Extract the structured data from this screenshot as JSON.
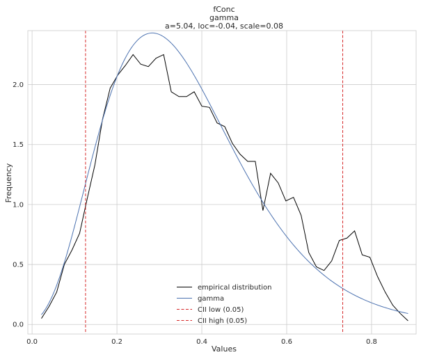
{
  "chart_data": {
    "type": "line",
    "title": [
      "fConc",
      "gamma",
      "a=5.04, loc=-0.04, scale=0.08"
    ],
    "xlabel": "Values",
    "ylabel": "Frequency",
    "xlim": [
      -0.01,
      0.905
    ],
    "ylim": [
      -0.08,
      2.45
    ],
    "xticks": [
      0.0,
      0.2,
      0.4,
      0.6,
      0.8
    ],
    "xtick_labels": [
      "0.0",
      "0.2",
      "0.4",
      "0.6",
      "0.8"
    ],
    "yticks": [
      0.0,
      0.5,
      1.0,
      1.5,
      2.0
    ],
    "ytick_labels": [
      "0.0",
      "0.5",
      "1.0",
      "1.5",
      "2.0"
    ],
    "grid": true,
    "legend_position": "lower-center",
    "series": [
      {
        "name": "empirical distribution",
        "kind": "line",
        "color": "#000000",
        "x": [
          0.022,
          0.04,
          0.058,
          0.076,
          0.094,
          0.112,
          0.13,
          0.148,
          0.166,
          0.184,
          0.202,
          0.22,
          0.238,
          0.256,
          0.274,
          0.292,
          0.31,
          0.328,
          0.346,
          0.364,
          0.382,
          0.4,
          0.418,
          0.436,
          0.454,
          0.472,
          0.49,
          0.508,
          0.526,
          0.544,
          0.562,
          0.58,
          0.598,
          0.616,
          0.634,
          0.652,
          0.67,
          0.688,
          0.706,
          0.724,
          0.742,
          0.76,
          0.778,
          0.796,
          0.814,
          0.832,
          0.85,
          0.868,
          0.886
        ],
        "y": [
          0.05,
          0.15,
          0.27,
          0.5,
          0.62,
          0.76,
          1.05,
          1.33,
          1.71,
          1.97,
          2.08,
          2.16,
          2.25,
          2.17,
          2.15,
          2.22,
          2.25,
          1.94,
          1.9,
          1.9,
          1.94,
          1.82,
          1.81,
          1.68,
          1.65,
          1.51,
          1.42,
          1.36,
          1.36,
          0.95,
          1.26,
          1.18,
          1.03,
          1.06,
          0.91,
          0.6,
          0.48,
          0.45,
          0.53,
          0.7,
          0.72,
          0.78,
          0.58,
          0.56,
          0.4,
          0.27,
          0.16,
          0.09,
          0.03
        ]
      },
      {
        "name": "gamma",
        "kind": "curve",
        "color": "#4c72b0",
        "distribution": {
          "a": 5.04,
          "loc": -0.04,
          "scale": 0.08
        },
        "x_range": [
          0.022,
          0.886
        ]
      },
      {
        "name": "CII low (0.05)",
        "kind": "vline",
        "color": "#d62728",
        "x": 0.126
      },
      {
        "name": "CII high (0.05)",
        "kind": "vline",
        "color": "#d62728",
        "x": 0.732
      }
    ]
  }
}
